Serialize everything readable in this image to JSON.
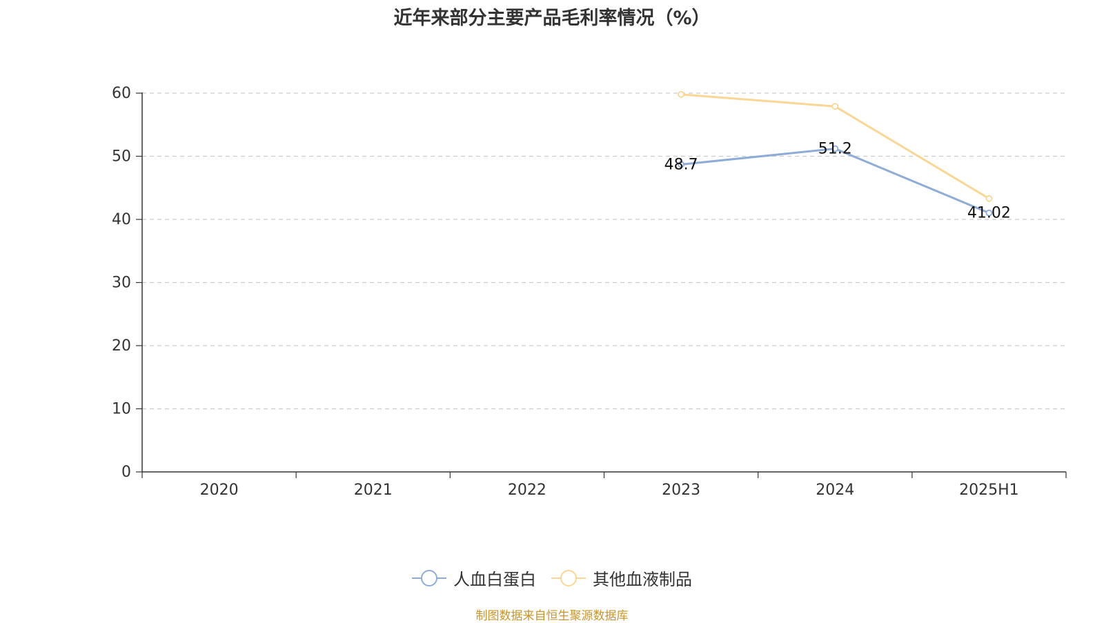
{
  "colors": {
    "series1": "#8eacd8",
    "series2": "#fad694",
    "axis": "#333333",
    "grid": "#cccccc",
    "source": "#c9952b"
  },
  "chart_data": {
    "type": "line",
    "title": "近年来部分主要产品毛利率情况（%）",
    "xlabel": "",
    "ylabel": "",
    "categories": [
      "2020",
      "2021",
      "2022",
      "2023",
      "2024",
      "2025H1"
    ],
    "ylim": [
      0,
      60
    ],
    "yticks": [
      "0",
      "10",
      "20",
      "30",
      "40",
      "50",
      "60"
    ],
    "grid": true,
    "legend_position": "bottom-center",
    "series": [
      {
        "name": "人血白蛋白",
        "values": [
          null,
          null,
          null,
          48.7,
          51.2,
          41.02
        ],
        "labels": [
          null,
          null,
          null,
          "48.7",
          "51.2",
          "41.02"
        ]
      },
      {
        "name": "其他血液制品",
        "values": [
          null,
          null,
          null,
          59.8,
          57.9,
          43.3
        ],
        "labels": [
          null,
          null,
          null,
          null,
          null,
          null
        ]
      }
    ]
  },
  "source_note": "制图数据来自恒生聚源数据库"
}
